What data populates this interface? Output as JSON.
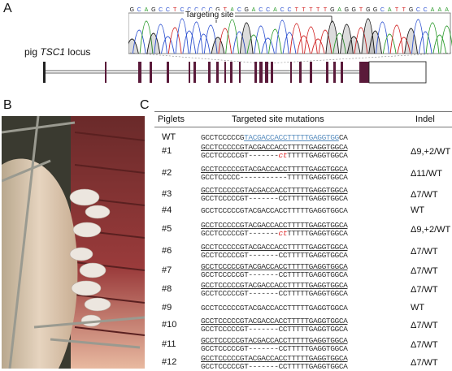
{
  "panels": {
    "a": "A",
    "b": "B",
    "c": "C"
  },
  "panel_a": {
    "chromatogram_bases": "GCAGCCTCCCCCGTACGACCACCTTTTTGAGGTGGCATTGCCAAA",
    "targeting_site_label": "Targeting site",
    "locus_prefix": "pig ",
    "locus_gene": "TSC1",
    "locus_suffix": " locus",
    "exon_color": "#5a1a3a"
  },
  "panel_c": {
    "headers": {
      "piglets": "Piglets",
      "mutations": "Targeted site mutations",
      "indel": "Indel"
    },
    "wt_row": {
      "label": "WT",
      "seq_a": "GCCTCCCCCG",
      "seq_b": "TACGACCACCTTTTTGAGGTGG",
      "seq_c": "CA",
      "indel": ""
    },
    "rows": [
      {
        "label": "#1",
        "line1": "GCCTCCCCCGTACGACCACCTTTTTGAGGTGGCA",
        "line2_a": "GCCTCCCCCGT-------",
        "line2_b": "ct",
        "line2_c": "TTTTTGAGGTGGCA",
        "indel": "Δ9,+2/WT"
      },
      {
        "label": "#2",
        "line1": "GCCTCCCCCGTACGACCACCTTTTTGAGGTGGCA",
        "line2_a": "GCCTCCCCC-----------",
        "line2_b": "",
        "line2_c": "TTTTTGAGGTGGCA",
        "indel": "Δ11/WT"
      },
      {
        "label": "#3",
        "line1": "GCCTCCCCCGTACGACCACCTTTTTGAGGTGGCA",
        "line2_a": "GCCTCCCCCGT-------",
        "line2_b": "",
        "line2_c": "CCTTTTTGAGGTGGCA",
        "indel": "Δ7/WT"
      },
      {
        "label": "#4",
        "line1": "GCCTCCCCCGTACGACCACCTTTTTGAGGTGGCA",
        "line2_a": "",
        "line2_b": "",
        "line2_c": "",
        "indel": "WT"
      },
      {
        "label": "#5",
        "line1": "GCCTCCCCCGTACGACCACCTTTTTGAGGTGGCA",
        "line2_a": "GCCTCCCCCGT-------",
        "line2_b": "ct",
        "line2_c": "TTTTTGAGGTGGCA",
        "indel": "Δ9,+2/WT"
      },
      {
        "label": "#6",
        "line1": "GCCTCCCCCGTACGACCACCTTTTTGAGGTGGCA",
        "line2_a": "GCCTCCCCCGT-------",
        "line2_b": "",
        "line2_c": "CCTTTTTGAGGTGGCA",
        "indel": "Δ7/WT"
      },
      {
        "label": "#7",
        "line1": "GCCTCCCCCGTACGACCACCTTTTTGAGGTGGCA",
        "line2_a": "GCCTCCCCCGT-------",
        "line2_b": "",
        "line2_c": "CCTTTTTGAGGTGGCA",
        "indel": "Δ7/WT"
      },
      {
        "label": "#8",
        "line1": "GCCTCCCCCGTACGACCACCTTTTTGAGGTGGCA",
        "line2_a": "GCCTCCCCCGT-------",
        "line2_b": "",
        "line2_c": "CCTTTTTGAGGTGGCA",
        "indel": "Δ7/WT"
      },
      {
        "label": "#9",
        "line1": "GCCTCCCCCGTACGACCACCTTTTTGAGGTGGCA",
        "line2_a": "",
        "line2_b": "",
        "line2_c": "",
        "indel": "WT"
      },
      {
        "label": "#10",
        "line1": "GCCTCCCCCGTACGACCACCTTTTTGAGGTGGCA",
        "line2_a": "GCCTCCCCCGT-------",
        "line2_b": "",
        "line2_c": "CCTTTTTGAGGTGGCA",
        "indel": "Δ7/WT"
      },
      {
        "label": "#11",
        "line1": "GCCTCCCCCGTACGACCACCTTTTTGAGGTGGCA",
        "line2_a": "GCCTCCCCCGT-------",
        "line2_b": "",
        "line2_c": "CCTTTTTGAGGTGGCA",
        "indel": "Δ7/WT"
      },
      {
        "label": "#12",
        "line1": "GCCTCCCCCGTACGACCACCTTTTTGAGGTGGCA",
        "line2_a": "GCCTCCCCCGT-------",
        "line2_b": "",
        "line2_c": "CCTTTTTGAGGTGGCA",
        "indel": "Δ7/WT"
      }
    ]
  }
}
